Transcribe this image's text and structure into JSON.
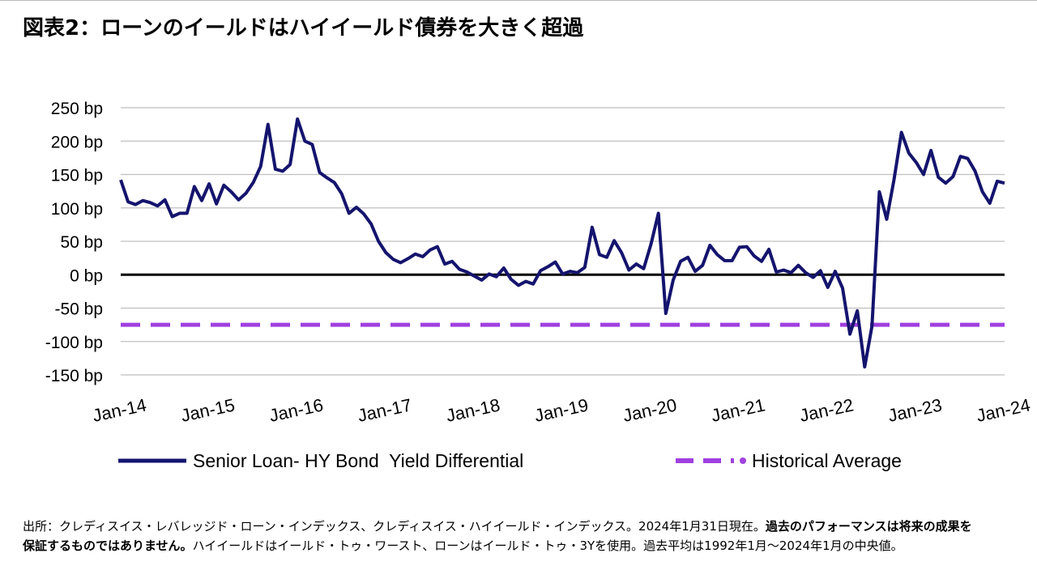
{
  "title": "図表2：ローンのイールドはハイイールド債券を大きく超過",
  "colors": {
    "loan_line": "#14146e",
    "average_line": "#a040e0",
    "zero_line": "#000000",
    "grid": "#bfbfbf",
    "text": "#000000"
  },
  "chart_data": {
    "type": "line",
    "title": "図表2：ローンのイールドはハイイールド債券を大きく超過",
    "y_unit": "bp",
    "ylim": [
      -150,
      250
    ],
    "y_ticks": [
      "250 bp",
      "200 bp",
      "150 bp",
      "100 bp",
      "50 bp",
      "0 bp",
      "-50 bp",
      "-100 bp",
      "-150 bp"
    ],
    "x_ticks": [
      "Jan-14",
      "Jan-15",
      "Jan-16",
      "Jan-17",
      "Jan-18",
      "Jan-19",
      "Jan-20",
      "Jan-21",
      "Jan-22",
      "Jan-23",
      "Jan-24"
    ],
    "x_start": "Jan-14",
    "x_end": "Jan-24",
    "grid": true,
    "legend_position": "bottom",
    "series": [
      {
        "name": "Senior Loan- HY Bond  Yield Differential",
        "style": "solid",
        "values": [
          142,
          109,
          105,
          111,
          108,
          103,
          112,
          87,
          92,
          92,
          132,
          111,
          136,
          106,
          134,
          124,
          112,
          122,
          138,
          162,
          225,
          158,
          155,
          165,
          233,
          200,
          195,
          153,
          145,
          138,
          121,
          92,
          101,
          91,
          76,
          50,
          33,
          23,
          18,
          24,
          31,
          27,
          37,
          42,
          16,
          20,
          8,
          4,
          -2,
          -8,
          1,
          -3,
          10,
          -7,
          -16,
          -10,
          -14,
          6,
          12,
          19,
          1,
          5,
          3,
          11,
          71,
          30,
          26,
          51,
          33,
          7,
          16,
          9,
          46,
          92,
          -58,
          -8,
          20,
          26,
          5,
          14,
          44,
          30,
          21,
          21,
          41,
          42,
          28,
          20,
          38,
          4,
          7,
          3,
          14,
          3,
          -4,
          6,
          -19,
          5,
          -20,
          -89,
          -54,
          -138,
          -77,
          124,
          83,
          143,
          213,
          182,
          168,
          150,
          186,
          146,
          137,
          147,
          177,
          174,
          155,
          124,
          107,
          140,
          137
        ]
      },
      {
        "name": "Historical Average",
        "style": "dashed",
        "values": [
          -75,
          -75
        ]
      }
    ]
  },
  "footnote": {
    "part1": "出所：クレディスイス・レバレッジド・ローン・インデックス、クレディスイス・ハイイールド・インデックス。2024年1月31日現在。",
    "bold": "過去のパフォーマンスは将来の成果を保証するものではありません。",
    "part2": "ハイイールドはイールド・トゥ・ワースト、ローンはイールド・トゥ・3Yを使用。過去平均は1992年1月～2024年1月の中央値。"
  }
}
